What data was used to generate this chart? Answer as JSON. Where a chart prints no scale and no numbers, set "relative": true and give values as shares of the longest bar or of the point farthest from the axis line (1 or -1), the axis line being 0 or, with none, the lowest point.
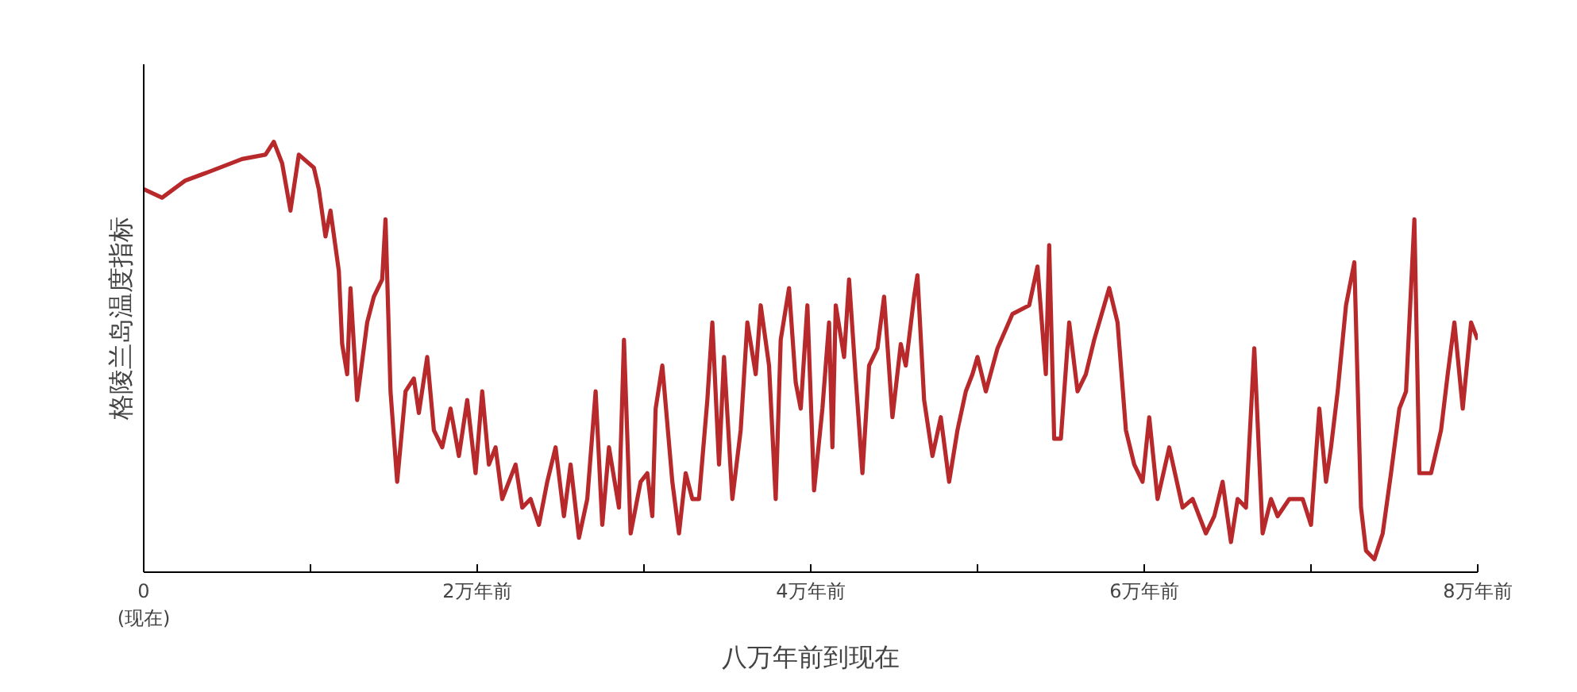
{
  "chart_data": {
    "type": "line",
    "relative": true,
    "xlabel": "八万年前到现在",
    "ylabel": "格陵兰岛温度指标",
    "xlim": [
      0,
      8
    ],
    "xticks": [
      {
        "value": 0,
        "label": "0\n(现在)"
      },
      {
        "value": 1,
        "label": null
      },
      {
        "value": 2,
        "label": "2万年前"
      },
      {
        "value": 3,
        "label": null
      },
      {
        "value": 4,
        "label": "4万年前"
      },
      {
        "value": 5,
        "label": null
      },
      {
        "value": 6,
        "label": "6万年前"
      },
      {
        "value": 7,
        "label": null
      },
      {
        "value": 8,
        "label": "8万年前"
      }
    ],
    "line_style": "solid",
    "x": [
      0,
      0.11,
      0.25,
      0.39,
      0.59,
      0.73,
      0.78,
      0.83,
      0.88,
      0.93,
      1.02,
      1.05,
      1.09,
      1.12,
      1.17,
      1.19,
      1.22,
      1.24,
      1.28,
      1.34,
      1.38,
      1.43,
      1.45,
      1.48,
      1.52,
      1.57,
      1.62,
      1.65,
      1.7,
      1.74,
      1.79,
      1.84,
      1.89,
      1.94,
      1.99,
      2.03,
      2.07,
      2.11,
      2.15,
      2.23,
      2.27,
      2.32,
      2.37,
      2.42,
      2.47,
      2.52,
      2.56,
      2.61,
      2.66,
      2.71,
      2.75,
      2.79,
      2.85,
      2.88,
      2.92,
      2.98,
      3.02,
      3.05,
      3.07,
      3.11,
      3.17,
      3.21,
      3.25,
      3.29,
      3.33,
      3.38,
      3.41,
      3.45,
      3.48,
      3.53,
      3.58,
      3.62,
      3.67,
      3.7,
      3.75,
      3.79,
      3.82,
      3.87,
      3.91,
      3.94,
      3.98,
      4.02,
      4.07,
      4.11,
      4.13,
      4.15,
      4.2,
      4.23,
      4.27,
      4.31,
      4.35,
      4.4,
      4.44,
      4.49,
      4.54,
      4.57,
      4.62,
      4.64,
      4.68,
      4.73,
      4.78,
      4.83,
      4.88,
      4.93,
      4.97,
      5.0,
      5.05,
      5.12,
      5.21,
      5.31,
      5.36,
      5.41,
      5.43,
      5.46,
      5.5,
      5.55,
      5.6,
      5.65,
      5.7,
      5.79,
      5.84,
      5.89,
      5.94,
      5.99,
      6.03,
      6.08,
      6.15,
      6.23,
      6.29,
      6.37,
      6.42,
      6.47,
      6.52,
      6.56,
      6.61,
      6.66,
      6.71,
      6.76,
      6.8,
      6.87,
      6.95,
      7.0,
      7.05,
      7.09,
      7.12,
      7.16,
      7.21,
      7.26,
      7.3,
      7.33,
      7.38,
      7.43,
      7.48,
      7.53,
      7.57,
      7.62,
      7.65,
      7.72,
      7.78,
      7.82,
      7.86,
      7.91,
      7.96,
      8
    ],
    "series": [
      {
        "color": "#b8292b",
        "values": [
          0.89,
          0.87,
          0.91,
          0.93,
          0.96,
          0.97,
          1,
          0.95,
          0.84,
          0.97,
          0.94,
          0.89,
          0.78,
          0.84,
          0.7,
          0.53,
          0.46,
          0.66,
          0.4,
          0.58,
          0.64,
          0.68,
          0.82,
          0.42,
          0.21,
          0.42,
          0.45,
          0.37,
          0.5,
          0.33,
          0.29,
          0.38,
          0.27,
          0.4,
          0.23,
          0.42,
          0.25,
          0.29,
          0.17,
          0.25,
          0.15,
          0.17,
          0.11,
          0.21,
          0.29,
          0.13,
          0.25,
          0.08,
          0.17,
          0.42,
          0.11,
          0.29,
          0.15,
          0.54,
          0.09,
          0.21,
          0.23,
          0.13,
          0.38,
          0.48,
          0.21,
          0.09,
          0.23,
          0.17,
          0.17,
          0.4,
          0.58,
          0.25,
          0.5,
          0.17,
          0.33,
          0.58,
          0.46,
          0.62,
          0.48,
          0.17,
          0.54,
          0.66,
          0.44,
          0.38,
          0.62,
          0.19,
          0.38,
          0.58,
          0.29,
          0.62,
          0.5,
          0.68,
          0.45,
          0.23,
          0.48,
          0.52,
          0.64,
          0.36,
          0.53,
          0.48,
          0.64,
          0.69,
          0.4,
          0.27,
          0.36,
          0.21,
          0.33,
          0.42,
          0.46,
          0.5,
          0.42,
          0.52,
          0.6,
          0.62,
          0.71,
          0.46,
          0.76,
          0.31,
          0.31,
          0.58,
          0.42,
          0.46,
          0.54,
          0.66,
          0.58,
          0.33,
          0.25,
          0.21,
          0.36,
          0.17,
          0.29,
          0.15,
          0.17,
          0.09,
          0.13,
          0.21,
          0.07,
          0.17,
          0.15,
          0.52,
          0.09,
          0.17,
          0.13,
          0.17,
          0.17,
          0.11,
          0.38,
          0.21,
          0.29,
          0.42,
          0.62,
          0.72,
          0.15,
          0.05,
          0.03,
          0.09,
          0.23,
          0.38,
          0.42,
          0.82,
          0.23,
          0.23,
          0.33,
          0.46,
          0.58,
          0.38,
          0.58,
          0.54
        ]
      }
    ]
  }
}
